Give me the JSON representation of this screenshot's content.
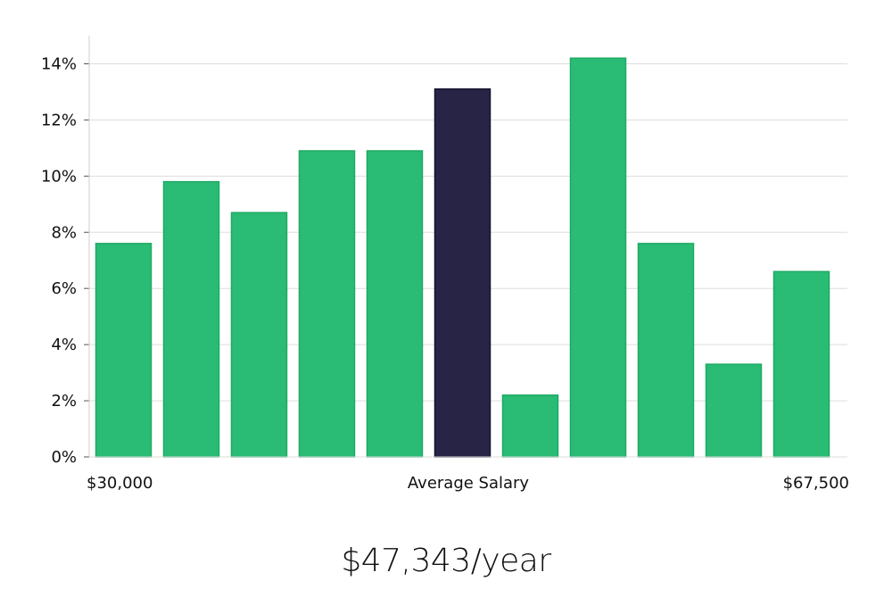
{
  "chart_data": {
    "type": "bar",
    "values": [
      7.6,
      9.8,
      8.7,
      10.9,
      10.9,
      13.1,
      2.2,
      14.2,
      7.6,
      3.3,
      6.6
    ],
    "highlight_index": 5,
    "colors": {
      "bar": "#2abb74",
      "bar_border": "#1faa64",
      "highlight": "#282446",
      "highlight_border": "#15122e",
      "grid": "#dddddd",
      "axis": "#cccccc"
    },
    "ylim": [
      0,
      15
    ],
    "yticks": [
      0,
      2,
      4,
      6,
      8,
      10,
      12,
      14
    ],
    "ytick_suffix": "%",
    "grid": true,
    "x_axis_labels": {
      "left": "$30,000",
      "center": "Average Salary",
      "right": "$67,500"
    }
  },
  "salary": {
    "text": "$47,343/year"
  }
}
